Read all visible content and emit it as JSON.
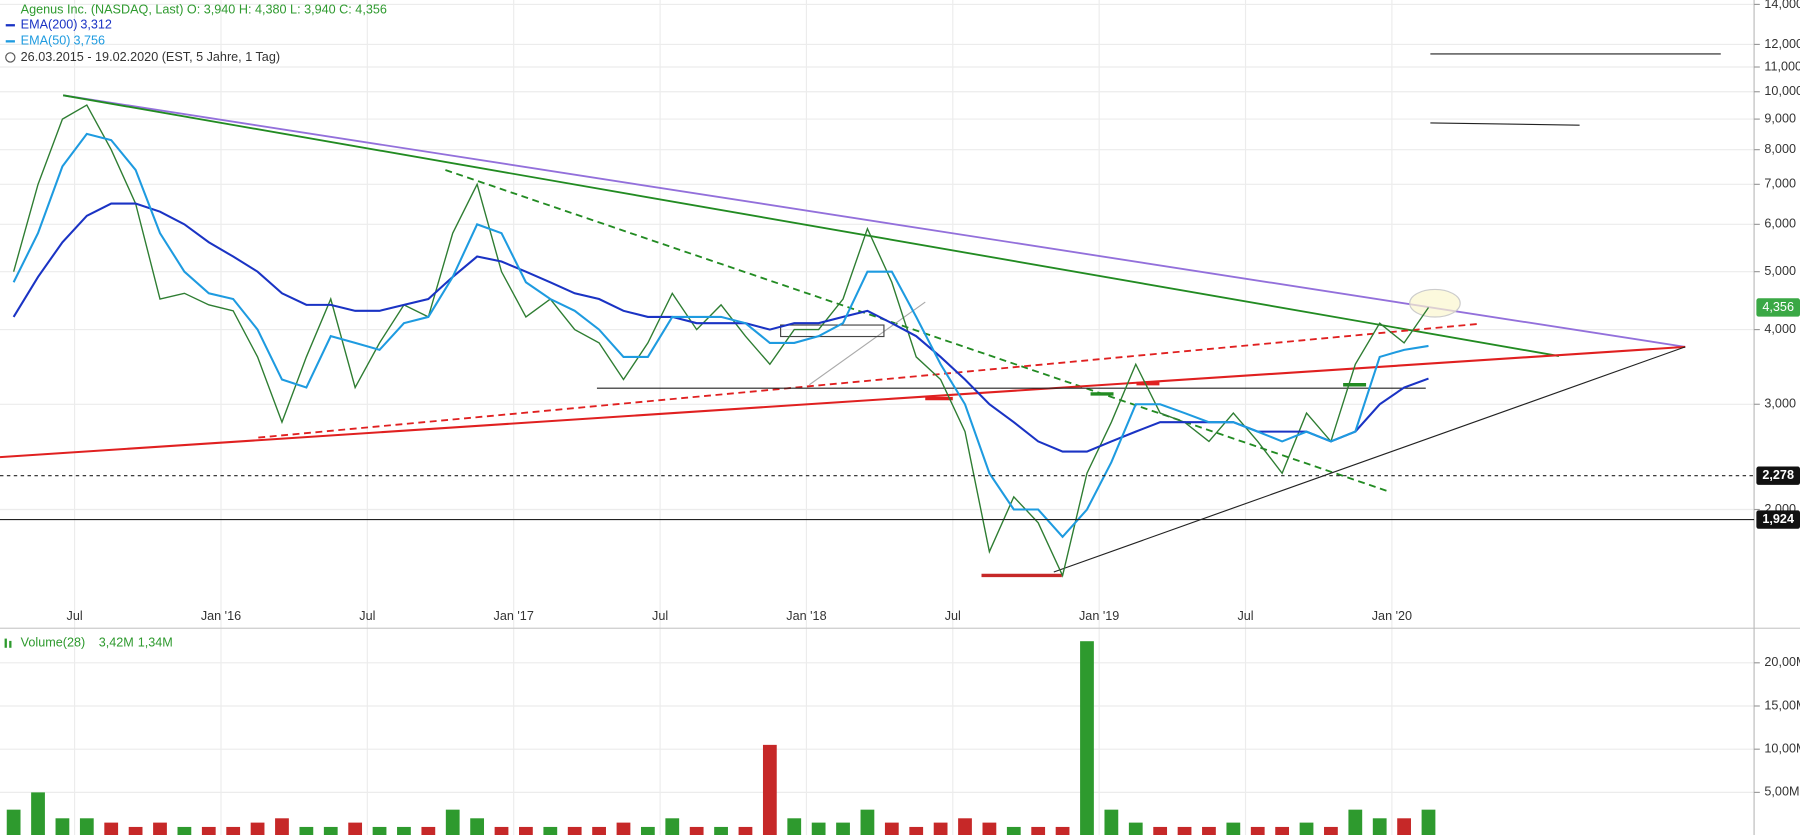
{
  "chart_data": {
    "type": "stock",
    "title": "Agenus Inc. (NASDAQ, Last)  O: 3,940  H: 4,380  L: 3,940  C: 4,356",
    "period": "26.03.2015 - 19.02.2020   (EST, 5 Jahre, 1 Tag)",
    "log_scale": true,
    "grid": true,
    "x": [
      "2015-04",
      "2015-05",
      "2015-06",
      "2015-07",
      "2015-08",
      "2015-09",
      "2015-10",
      "2015-11",
      "2015-12",
      "2016-01",
      "2016-02",
      "2016-03",
      "2016-04",
      "2016-05",
      "2016-06",
      "2016-07",
      "2016-08",
      "2016-09",
      "2016-10",
      "2016-11",
      "2016-12",
      "2017-01",
      "2017-02",
      "2017-03",
      "2017-04",
      "2017-05",
      "2017-06",
      "2017-07",
      "2017-08",
      "2017-09",
      "2017-10",
      "2017-11",
      "2017-12",
      "2018-01",
      "2018-02",
      "2018-03",
      "2018-04",
      "2018-05",
      "2018-06",
      "2018-07",
      "2018-08",
      "2018-09",
      "2018-10",
      "2018-11",
      "2018-12",
      "2019-01",
      "2019-02",
      "2019-03",
      "2019-04",
      "2019-05",
      "2019-06",
      "2019-07",
      "2019-08",
      "2019-09",
      "2019-10",
      "2019-11",
      "2019-12",
      "2020-01",
      "2020-02"
    ],
    "xticks": [
      {
        "value": "2015-07",
        "label": "Jul"
      },
      {
        "value": "2016-01",
        "label": "Jan '16"
      },
      {
        "value": "2016-07",
        "label": "Jul"
      },
      {
        "value": "2017-01",
        "label": "Jan '17"
      },
      {
        "value": "2017-07",
        "label": "Jul"
      },
      {
        "value": "2018-01",
        "label": "Jan '18"
      },
      {
        "value": "2018-07",
        "label": "Jul"
      },
      {
        "value": "2019-01",
        "label": "Jan '19"
      },
      {
        "value": "2019-07",
        "label": "Jul"
      },
      {
        "value": "2020-01",
        "label": "Jan '20"
      }
    ],
    "ylim": [
      1.277,
      14.24
    ],
    "yticks": [
      {
        "value": 2,
        "label": "2,000"
      },
      {
        "value": 3,
        "label": "3,000"
      },
      {
        "value": 4,
        "label": "4,000"
      },
      {
        "value": 5,
        "label": "5,000"
      },
      {
        "value": 6,
        "label": "6,000"
      },
      {
        "value": 7,
        "label": "7,000"
      },
      {
        "value": 8,
        "label": "8,000"
      },
      {
        "value": 9,
        "label": "9,000"
      },
      {
        "value": 10,
        "label": "10,000"
      },
      {
        "value": 11,
        "label": "11,000"
      },
      {
        "value": 12,
        "label": "12,000"
      },
      {
        "value": 14,
        "label": "14,000"
      }
    ],
    "series": [
      {
        "name": "Agenus Inc.",
        "color": "#2e7d32",
        "values": [
          5.0,
          7.0,
          9.0,
          9.5,
          8.0,
          6.5,
          4.5,
          4.6,
          4.4,
          4.3,
          3.6,
          2.8,
          3.6,
          4.5,
          3.2,
          3.8,
          4.4,
          4.2,
          5.8,
          7.0,
          5.0,
          4.2,
          4.5,
          4.0,
          3.8,
          3.3,
          3.8,
          4.6,
          4.0,
          4.4,
          3.9,
          3.5,
          4.0,
          4.0,
          4.5,
          5.9,
          4.8,
          3.6,
          3.3,
          2.7,
          1.7,
          2.1,
          1.9,
          1.55,
          2.3,
          2.8,
          3.5,
          2.9,
          2.8,
          2.6,
          2.9,
          2.6,
          2.3,
          2.9,
          2.6,
          3.5,
          4.1,
          3.8,
          4.356
        ],
        "last": {
          "value": 4.356,
          "label": "4,356"
        }
      },
      {
        "name": "EMA(200)",
        "color": "#1a33c4",
        "values": [
          4.2,
          4.9,
          5.6,
          6.2,
          6.5,
          6.5,
          6.3,
          6.0,
          5.6,
          5.3,
          5.0,
          4.6,
          4.4,
          4.4,
          4.3,
          4.3,
          4.4,
          4.5,
          4.9,
          5.3,
          5.2,
          5.0,
          4.8,
          4.6,
          4.5,
          4.3,
          4.2,
          4.2,
          4.1,
          4.1,
          4.1,
          4.0,
          4.1,
          4.1,
          4.2,
          4.3,
          4.1,
          3.9,
          3.6,
          3.3,
          3.0,
          2.8,
          2.6,
          2.5,
          2.5,
          2.6,
          2.7,
          2.8,
          2.8,
          2.8,
          2.8,
          2.7,
          2.7,
          2.7,
          2.6,
          2.7,
          3.0,
          3.2,
          3.312
        ],
        "last_label": "3,312"
      },
      {
        "name": "EMA(50)",
        "color": "#1e9be0",
        "values": [
          4.8,
          5.8,
          7.5,
          8.5,
          8.3,
          7.4,
          5.8,
          5.0,
          4.6,
          4.5,
          4.0,
          3.3,
          3.2,
          3.9,
          3.8,
          3.7,
          4.1,
          4.2,
          4.9,
          6.0,
          5.8,
          4.8,
          4.5,
          4.3,
          4.0,
          3.6,
          3.6,
          4.2,
          4.2,
          4.2,
          4.1,
          3.8,
          3.8,
          3.9,
          4.1,
          5.0,
          5.0,
          4.2,
          3.5,
          3.0,
          2.3,
          2.0,
          2.0,
          1.8,
          2.0,
          2.4,
          3.0,
          3.0,
          2.9,
          2.8,
          2.8,
          2.7,
          2.6,
          2.7,
          2.6,
          2.7,
          3.6,
          3.7,
          3.756
        ],
        "last_label": "3,756"
      }
    ],
    "levels": [
      {
        "value": 2.278,
        "label": "2,278",
        "style": "dashed"
      },
      {
        "value": 1.924,
        "label": "1,924",
        "style": "solid"
      }
    ],
    "volume": {
      "name": "Volume(28)",
      "labels": [
        "3,42M",
        "1,34M"
      ],
      "up_color": "#2e9a2e",
      "down_color": "#c62828",
      "ylim": [
        0,
        23.6
      ],
      "yticks": [
        {
          "value": 5,
          "label": "5,00M"
        },
        {
          "value": 10,
          "label": "10,00M"
        },
        {
          "value": 15,
          "label": "15,00M"
        },
        {
          "value": 20,
          "label": "20,00M"
        }
      ],
      "values": [
        3,
        5,
        2,
        2,
        1.5,
        1,
        1.5,
        1,
        1,
        1,
        1.5,
        2,
        1,
        1,
        1.5,
        1,
        1,
        1,
        3,
        2,
        1,
        1,
        1,
        1,
        1,
        1.5,
        1,
        2,
        1,
        1,
        1,
        10.5,
        2,
        1.5,
        1.5,
        3,
        1.5,
        1,
        1.5,
        2,
        1.5,
        1,
        1,
        1,
        22.5,
        3,
        1.5,
        1,
        1,
        1,
        1.5,
        1,
        1,
        1.5,
        1,
        3,
        2,
        2,
        3
      ]
    }
  }
}
